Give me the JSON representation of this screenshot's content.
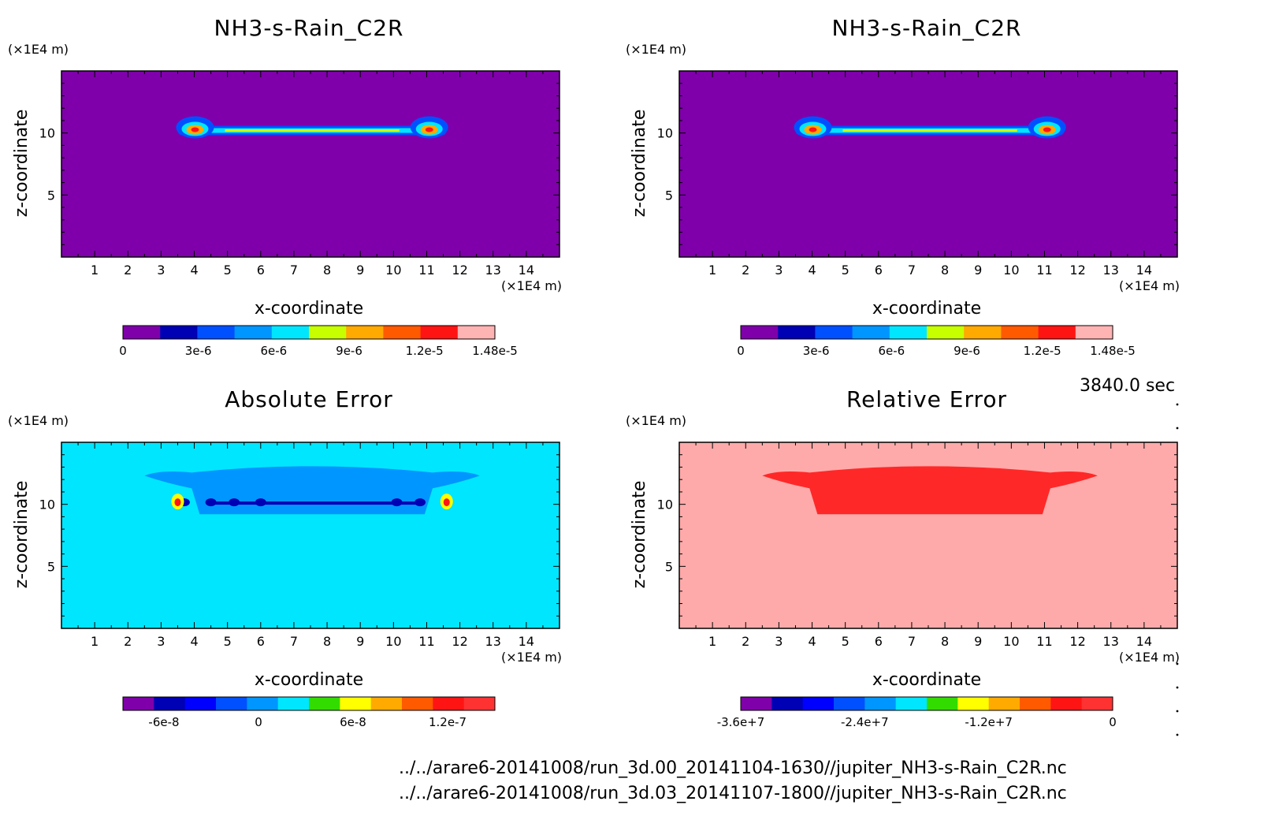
{
  "chart_data": [
    {
      "type": "heatmap",
      "title": "NH3-s-Rain_C2R",
      "xlabel": "x-coordinate",
      "ylabel": "z-coordinate",
      "x_unit": "(×1E4 m)",
      "y_unit": "(×1E4 m)",
      "xlim": [
        0,
        15
      ],
      "ylim": [
        0,
        15
      ],
      "x_ticks": [
        "1",
        "2",
        "3",
        "4",
        "5",
        "6",
        "7",
        "8",
        "9",
        "10",
        "11",
        "12",
        "13",
        "14"
      ],
      "y_ticks": [
        "5",
        "10"
      ],
      "background_color": "#7f00aa",
      "feature": {
        "kind": "thin-layer",
        "x_range": [
          3.5,
          11.6
        ],
        "z_center": 10.2,
        "peak_at_edges": true
      },
      "colorbar": {
        "colors": [
          "#7f00aa",
          "#0000b4",
          "#0050ff",
          "#0096ff",
          "#00e6ff",
          "#c8ff00",
          "#ffaa00",
          "#ff5a00",
          "#ff1414",
          "#ffb4b4"
        ],
        "range": [
          0,
          1.48e-05
        ],
        "tick_values": [
          0,
          3e-06,
          6e-06,
          9e-06,
          1.2e-05,
          1.48e-05
        ],
        "tick_labels": [
          "0",
          "3e-6",
          "6e-6",
          "9e-6",
          "1.2e-5",
          "1.48e-5"
        ]
      }
    },
    {
      "type": "heatmap",
      "title": "NH3-s-Rain_C2R",
      "xlabel": "x-coordinate",
      "ylabel": "z-coordinate",
      "x_unit": "(×1E4 m)",
      "y_unit": "(×1E4 m)",
      "xlim": [
        0,
        15
      ],
      "ylim": [
        0,
        15
      ],
      "x_ticks": [
        "1",
        "2",
        "3",
        "4",
        "5",
        "6",
        "7",
        "8",
        "9",
        "10",
        "11",
        "12",
        "13",
        "14"
      ],
      "y_ticks": [
        "5",
        "10"
      ],
      "background_color": "#7f00aa",
      "feature": {
        "kind": "thin-layer",
        "x_range": [
          3.5,
          11.6
        ],
        "z_center": 10.2,
        "peak_at_edges": true
      },
      "colorbar": {
        "colors": [
          "#7f00aa",
          "#0000b4",
          "#0050ff",
          "#0096ff",
          "#00e6ff",
          "#c8ff00",
          "#ffaa00",
          "#ff5a00",
          "#ff1414",
          "#ffb4b4"
        ],
        "range": [
          0,
          1.48e-05
        ],
        "tick_values": [
          0,
          3e-06,
          6e-06,
          9e-06,
          1.2e-05,
          1.48e-05
        ],
        "tick_labels": [
          "0",
          "3e-6",
          "6e-6",
          "9e-6",
          "1.2e-5",
          "1.48e-5"
        ]
      }
    },
    {
      "type": "heatmap",
      "title": "Absolute Error",
      "xlabel": "x-coordinate",
      "ylabel": "z-coordinate",
      "x_unit": "(×1E4 m)",
      "y_unit": "(×1E4 m)",
      "xlim": [
        0,
        15
      ],
      "ylim": [
        0,
        15
      ],
      "x_ticks": [
        "1",
        "2",
        "3",
        "4",
        "5",
        "6",
        "7",
        "8",
        "9",
        "10",
        "11",
        "12",
        "13",
        "14"
      ],
      "y_ticks": [
        "5",
        "10"
      ],
      "background_color": "#00e6ff",
      "feature": {
        "kind": "cloud-error",
        "x_range": [
          2.5,
          12.6
        ],
        "z_range": [
          9.2,
          13.2
        ],
        "primary_color": "#0096ff"
      },
      "colorbar": {
        "colors": [
          "#7f00aa",
          "#0000b4",
          "#0000ff",
          "#0050ff",
          "#0096ff",
          "#00e6ff",
          "#32dc00",
          "#ffff00",
          "#ffaa00",
          "#ff5a00",
          "#ff1414",
          "#ff3232"
        ],
        "range": [
          -8.6e-08,
          1.5e-07
        ],
        "tick_values": [
          -6e-08,
          0,
          6e-08,
          1.2e-07
        ],
        "tick_labels": [
          "-6e-8",
          "0",
          "6e-8",
          "1.2e-7"
        ]
      }
    },
    {
      "type": "heatmap",
      "title": "Relative Error",
      "xlabel": "x-coordinate",
      "ylabel": "z-coordinate",
      "x_unit": "(×1E4 m)",
      "y_unit": "(×1E4 m)",
      "xlim": [
        0,
        15
      ],
      "ylim": [
        0,
        15
      ],
      "x_ticks": [
        "1",
        "2",
        "3",
        "4",
        "5",
        "6",
        "7",
        "8",
        "9",
        "10",
        "11",
        "12",
        "13",
        "14"
      ],
      "y_ticks": [
        "5",
        "10"
      ],
      "background_color": "#ffaaaa",
      "feature": {
        "kind": "cloud-error",
        "x_range": [
          2.5,
          12.6
        ],
        "z_range": [
          9.2,
          13.2
        ],
        "primary_color": "#ff2828"
      },
      "colorbar": {
        "colors": [
          "#7f00aa",
          "#0000b4",
          "#0000ff",
          "#0050ff",
          "#0096ff",
          "#00e6ff",
          "#32dc00",
          "#ffff00",
          "#ffaa00",
          "#ff5a00",
          "#ff1414",
          "#ff3232"
        ],
        "range": [
          -36000000.0,
          0
        ],
        "tick_values": [
          -36000000.0,
          -24000000.0,
          -12000000.0,
          0
        ],
        "tick_labels": [
          "-3.6e+7",
          "-2.4e+7",
          "-1.2e+7",
          "0"
        ]
      }
    }
  ],
  "time_label": "3840.0 sec",
  "footer": {
    "line1": "../../arare6-20141008/run_3d.00_20141104-1630//jupiter_NH3-s-Rain_C2R.nc",
    "line2": "../../arare6-20141008/run_3d.03_20141107-1800//jupiter_NH3-s-Rain_C2R.nc"
  }
}
